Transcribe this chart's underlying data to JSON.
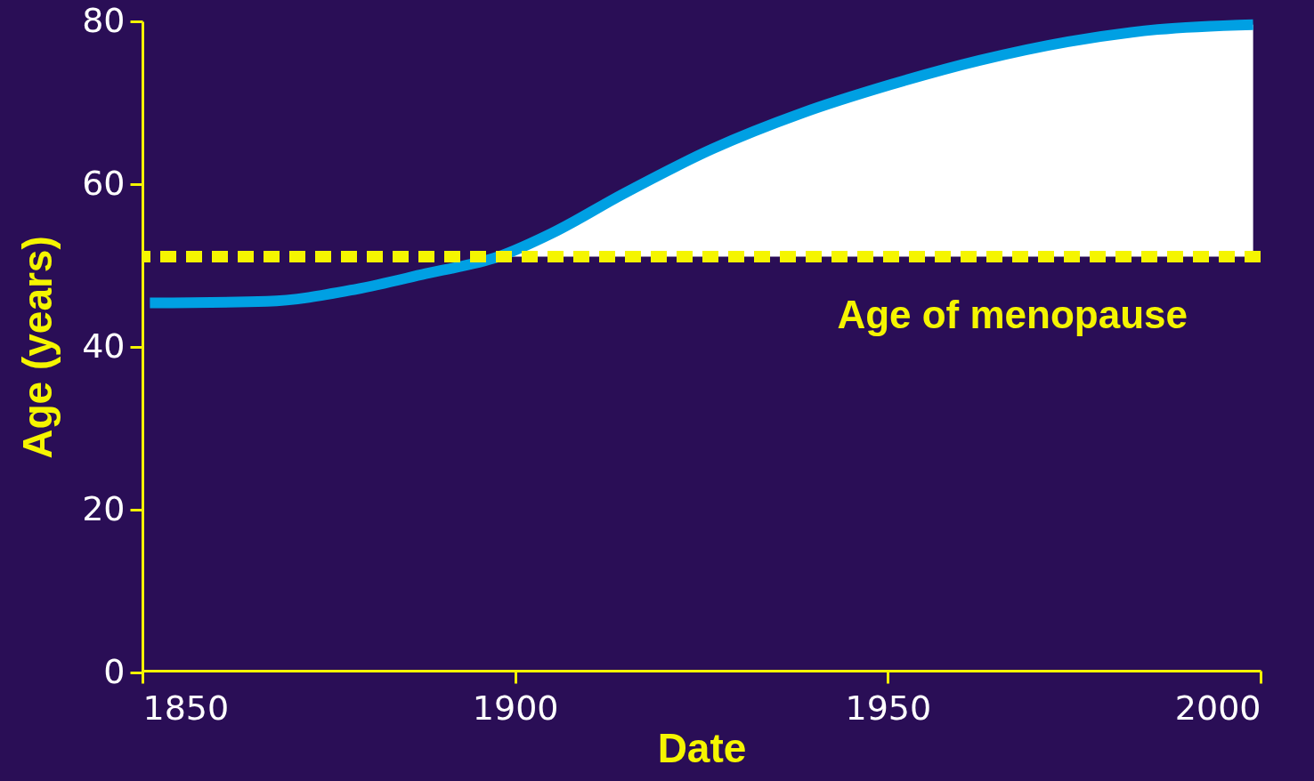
{
  "chart_data": {
    "type": "line",
    "xlabel": "Date",
    "ylabel": "Age (years)",
    "xlim": [
      1850,
      2000
    ],
    "ylim": [
      0,
      80
    ],
    "xticks": [
      1850,
      1900,
      1950,
      2000
    ],
    "yticks": [
      0,
      20,
      40,
      60,
      80
    ],
    "grid": false,
    "series": [
      {
        "type": "area",
        "color": "#ffffff",
        "x": [
          1898,
          1905,
          1914.5,
          1926.4,
          1938.4,
          1950.3,
          1962.3,
          1974.2,
          1986.2,
          1999
        ],
        "values": [
          51.1,
          54,
          58.8,
          64.3,
          68.7,
          72.2,
          75.2,
          77.5,
          79,
          79.6
        ]
      },
      {
        "color": "#00a0e3",
        "x": [
          1851,
          1866.7,
          1878.7,
          1888,
          1897.8,
          1905,
          1914.5,
          1926.4,
          1938.4,
          1950.3,
          1962.3,
          1974.2,
          1986.2,
          1999
        ],
        "values": [
          45.4,
          45.6,
          47.1,
          49,
          51.1,
          54,
          58.8,
          64.3,
          68.7,
          72.2,
          75.2,
          77.5,
          79,
          79.6
        ]
      }
    ],
    "ref_lines": [
      {
        "axis": "y",
        "value": 51.1,
        "label": "Age of menopause",
        "color": "#f5f500",
        "line_style": "dashed"
      }
    ]
  }
}
